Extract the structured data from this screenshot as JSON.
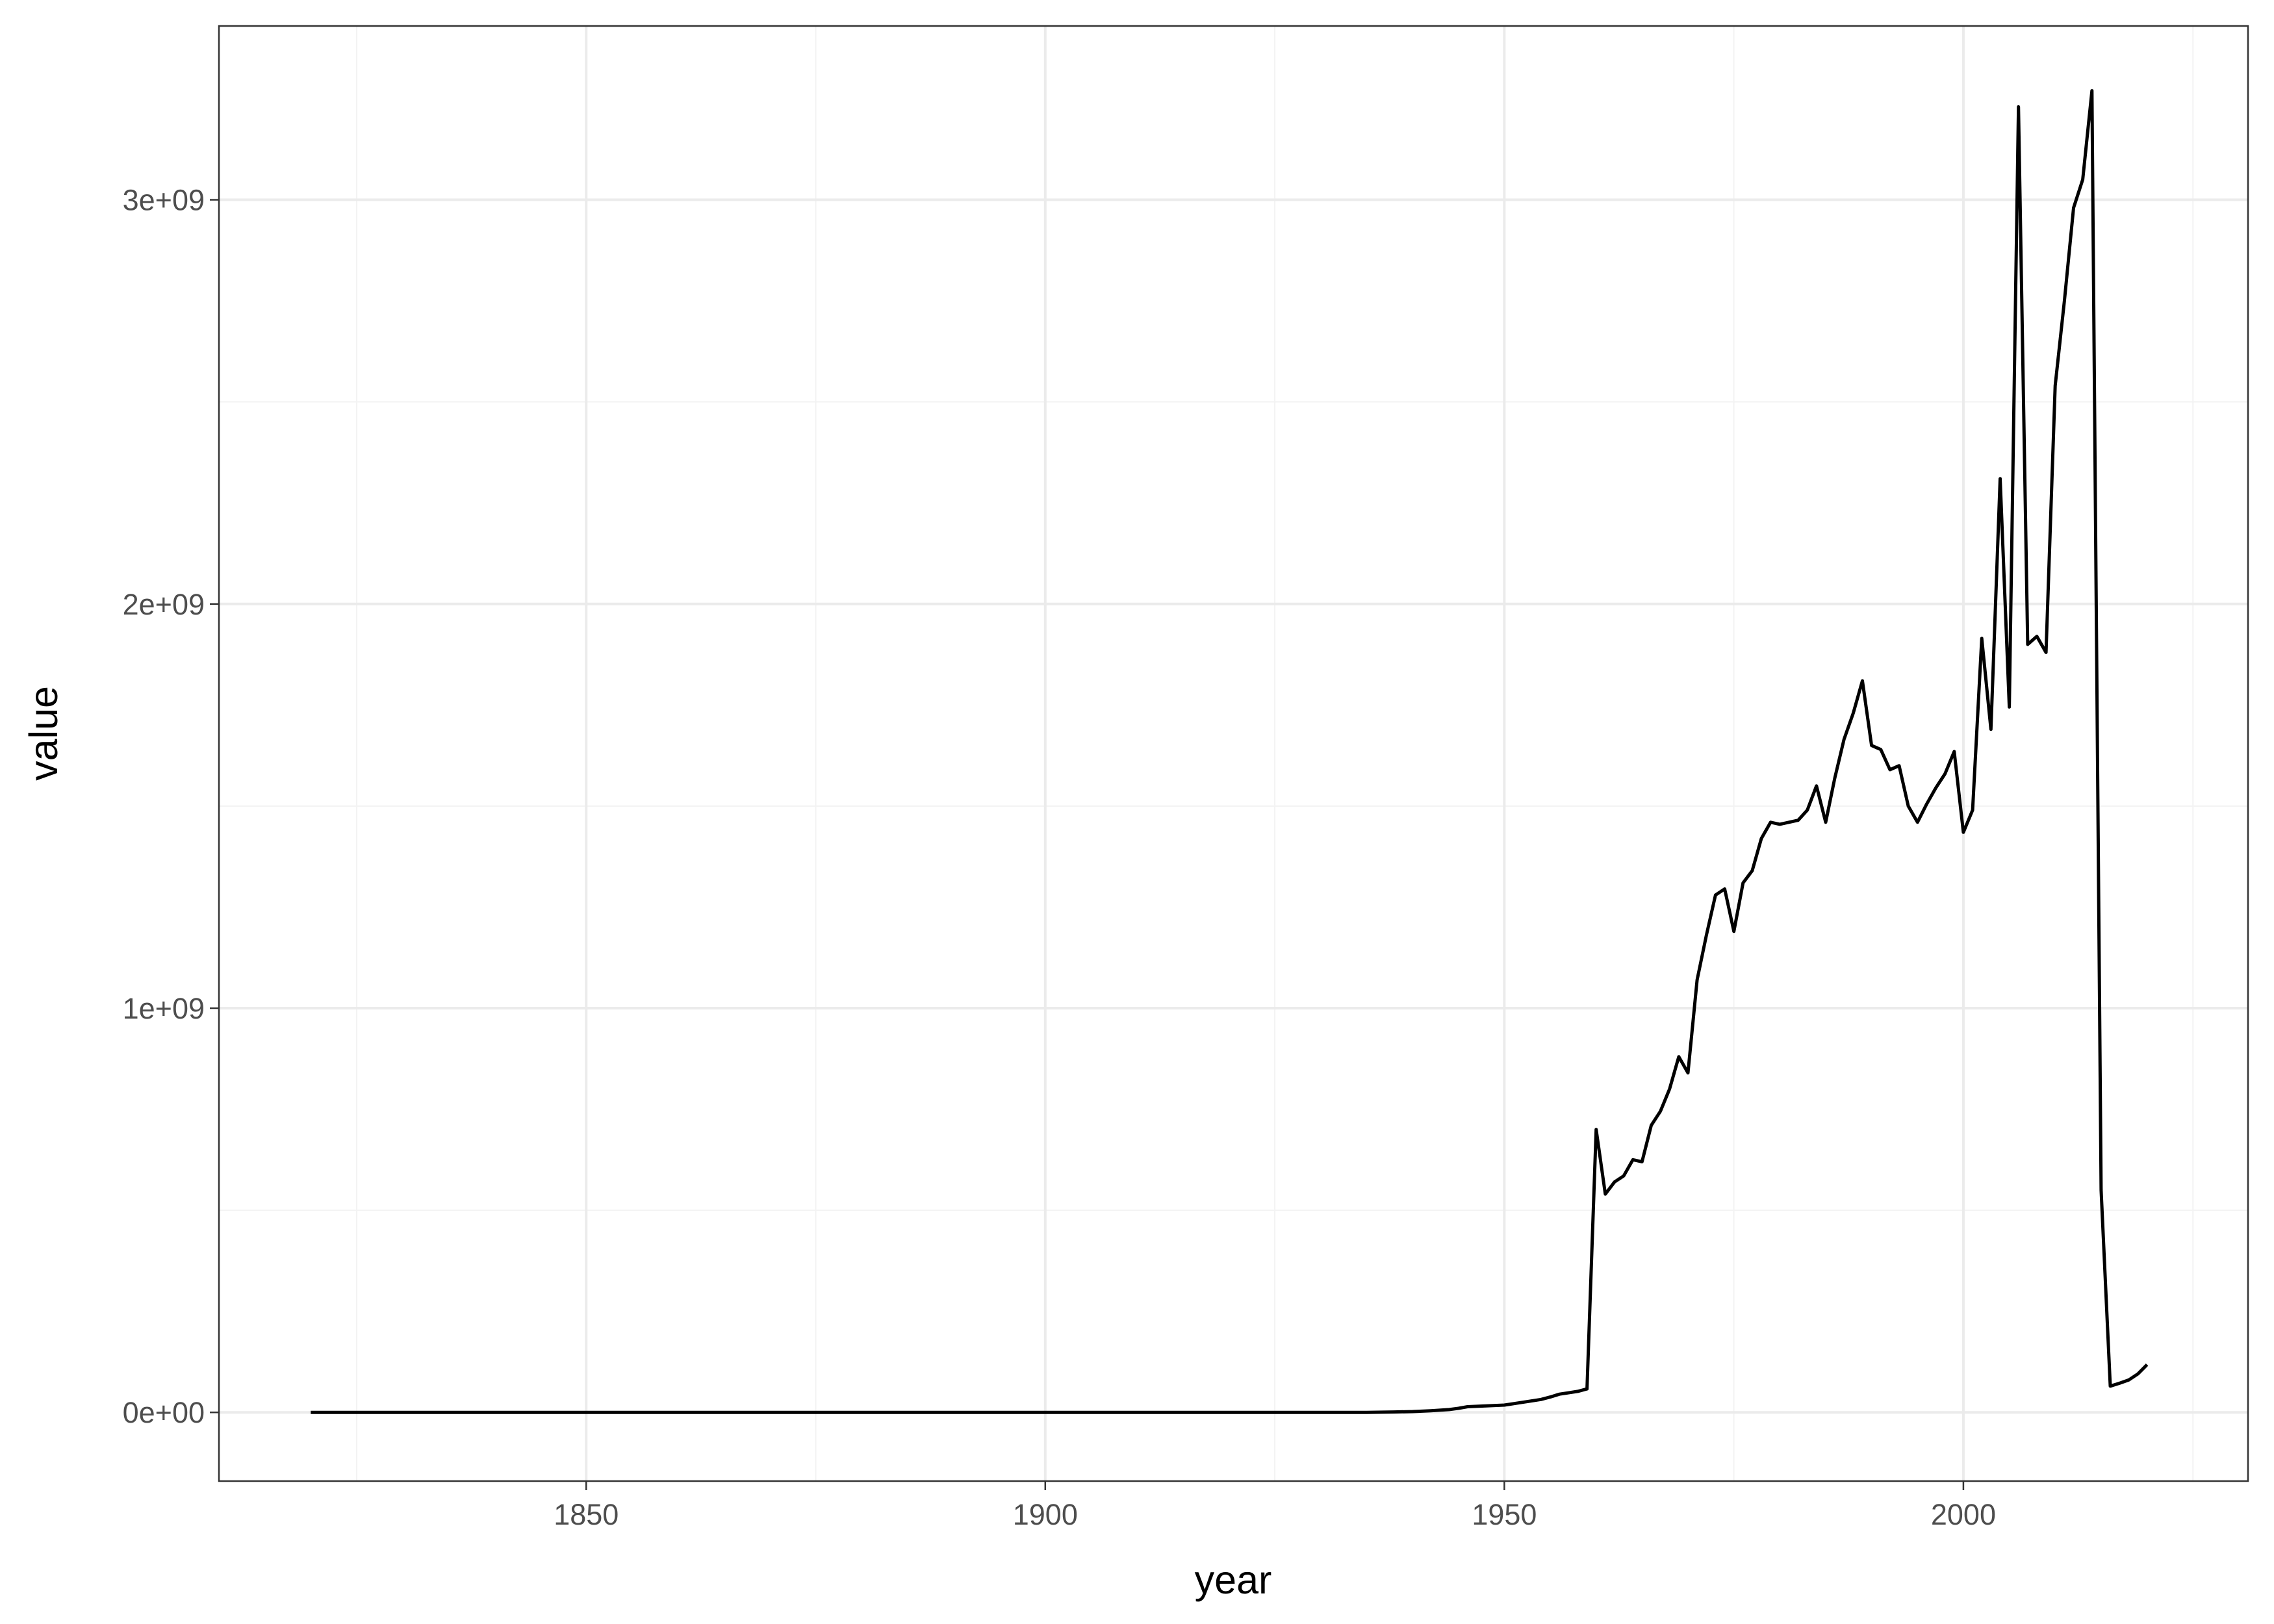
{
  "colors": {
    "panel_border": "#333333",
    "grid_major": "#ebebeb",
    "grid_minor": "#f3f3f3",
    "line": "#000000",
    "tick_text": "#4d4d4d"
  },
  "chart_data": {
    "type": "line",
    "xlabel": "year",
    "ylabel": "value",
    "xlim": [
      1810,
      2031
    ],
    "ylim": [
      -170000000,
      3430000000
    ],
    "x_ticks": [
      1850,
      1900,
      1950,
      2000
    ],
    "x_tick_labels": [
      "1850",
      "1900",
      "1950",
      "2000"
    ],
    "x_minor_ticks": [
      1825,
      1875,
      1925,
      1975,
      2025
    ],
    "y_ticks": [
      0,
      1000000000,
      2000000000,
      3000000000
    ],
    "y_tick_labels": [
      "0e+00",
      "1e+09",
      "2e+09",
      "3e+09"
    ],
    "y_minor_ticks": [
      500000000,
      1500000000,
      2500000000
    ],
    "grid": true,
    "legend": "none",
    "series": [
      {
        "x": [
          1820,
          1830,
          1840,
          1850,
          1860,
          1870,
          1880,
          1890,
          1900,
          1910,
          1920,
          1930,
          1935,
          1938,
          1940,
          1942,
          1944,
          1945,
          1946,
          1948,
          1950,
          1952,
          1954,
          1955,
          1956,
          1958,
          1959,
          1960,
          1961,
          1962,
          1963,
          1964,
          1965,
          1966,
          1967,
          1968,
          1969,
          1970,
          1971,
          1972,
          1973,
          1974,
          1975,
          1976,
          1977,
          1978,
          1979,
          1980,
          1981,
          1982,
          1983,
          1984,
          1985,
          1986,
          1987,
          1988,
          1989,
          1990,
          1991,
          1992,
          1993,
          1994,
          1995,
          1996,
          1997,
          1998,
          1999,
          2000,
          2001,
          2002,
          2003,
          2004,
          2005,
          2006,
          2007,
          2008,
          2009,
          2010,
          2011,
          2012,
          2013,
          2014,
          2015,
          2016,
          2017,
          2018,
          2019,
          2020
        ],
        "y": [
          0,
          0,
          0,
          0,
          0,
          0,
          0,
          0,
          0,
          0,
          0,
          0,
          0,
          1000000,
          2000000,
          4000000,
          7000000,
          10000000,
          14000000,
          16000000,
          18000000,
          25000000,
          32000000,
          38000000,
          45000000,
          52000000,
          58000000,
          700000000,
          540000000,
          570000000,
          585000000,
          625000000,
          620000000,
          710000000,
          745000000,
          800000000,
          880000000,
          840000000,
          1070000000,
          1180000000,
          1280000000,
          1295000000,
          1190000000,
          1310000000,
          1340000000,
          1420000000,
          1460000000,
          1455000000,
          1460000000,
          1465000000,
          1490000000,
          1550000000,
          1460000000,
          1570000000,
          1665000000,
          1730000000,
          1810000000,
          1650000000,
          1640000000,
          1590000000,
          1600000000,
          1500000000,
          1460000000,
          1505000000,
          1545000000,
          1580000000,
          1635000000,
          1435000000,
          1490000000,
          1915000000,
          1690000000,
          2310000000,
          1745000000,
          3230000000,
          1900000000,
          1920000000,
          1880000000,
          2540000000,
          2750000000,
          2980000000,
          3050000000,
          3270000000,
          550000000,
          65000000,
          72000000,
          80000000,
          95000000,
          118000000
        ]
      }
    ]
  }
}
